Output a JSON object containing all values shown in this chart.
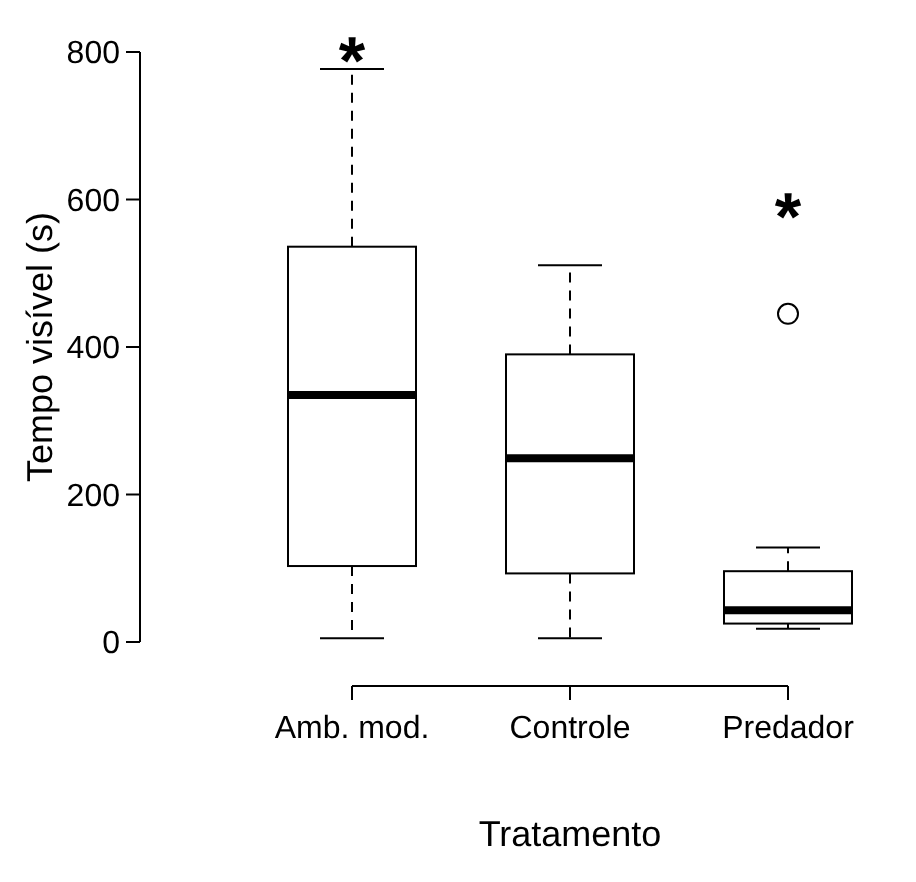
{
  "chart_data": {
    "type": "box",
    "xlabel": "Tratamento",
    "ylabel": "Tempo visível (s)",
    "categories": [
      "Amb. mod.",
      "Controle",
      "Predador"
    ],
    "boxes": [
      {
        "low": 5,
        "q1": 103,
        "median": 335,
        "q3": 536,
        "high": 777
      },
      {
        "low": 5,
        "q1": 93,
        "median": 249,
        "q3": 390,
        "high": 511
      },
      {
        "low": 18,
        "q1": 25,
        "median": 43,
        "q3": 96,
        "high": 128,
        "outliers": [
          445
        ]
      }
    ],
    "ylim": [
      0,
      800
    ],
    "yticks": [
      0,
      200,
      400,
      600,
      800
    ],
    "annotations": [
      "*",
      "*"
    ]
  }
}
